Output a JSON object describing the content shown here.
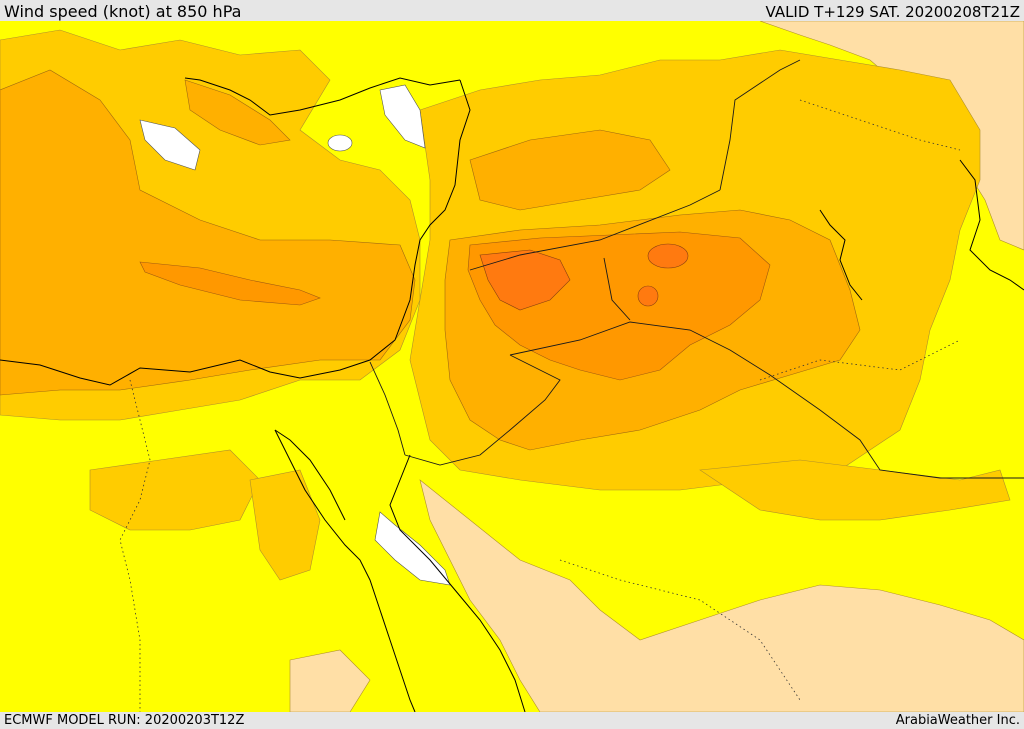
{
  "header": {
    "title": "Wind speed (knot) at 850 hPa",
    "valid_time": "VALID T+129 SAT. 20200208T21Z"
  },
  "footer": {
    "model_run": "ECMWF MODEL RUN: 20200203T12Z",
    "credit": "ArabiaWeather Inc."
  },
  "colors": {
    "background_band": "#ffff00",
    "low_band": "#ffdfa6",
    "mid_band": "#ffcc00",
    "upper_band": "#ffb000",
    "high_band": "#ff9800",
    "peak_band": "#ff7a10",
    "no_data": "#ffffff",
    "frame": "#e6e6e6"
  }
}
